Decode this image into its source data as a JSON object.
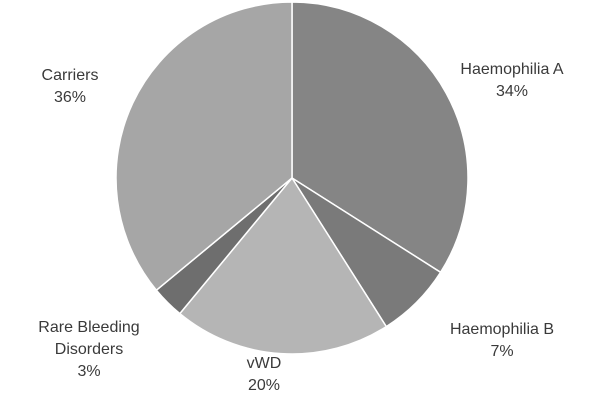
{
  "chart_data": {
    "type": "pie",
    "title": "",
    "categories": [
      "Haemophilia A",
      "Haemophilia B",
      "vWD",
      "Rare Bleeding Disorders",
      "Carriers"
    ],
    "values": [
      34,
      7,
      20,
      3,
      36
    ],
    "value_labels": [
      "34%",
      "7%",
      "20%",
      "3%",
      "36%"
    ],
    "start_angle_deg": 0,
    "direction": "clockwise",
    "legend": "none",
    "colors": [
      "#858585",
      "#7a7a7a",
      "#b5b5b5",
      "#6e6e6e",
      "#a6a6a6"
    ],
    "labels": [
      {
        "name_lines": [
          "Haemophilia A"
        ],
        "value": "34%"
      },
      {
        "name_lines": [
          "Haemophilia B"
        ],
        "value": "7%"
      },
      {
        "name_lines": [
          "vWD"
        ],
        "value": "20%"
      },
      {
        "name_lines": [
          "Rare Bleeding",
          "Disorders"
        ],
        "value": "3%"
      },
      {
        "name_lines": [
          "Carriers"
        ],
        "value": "36%"
      }
    ]
  }
}
